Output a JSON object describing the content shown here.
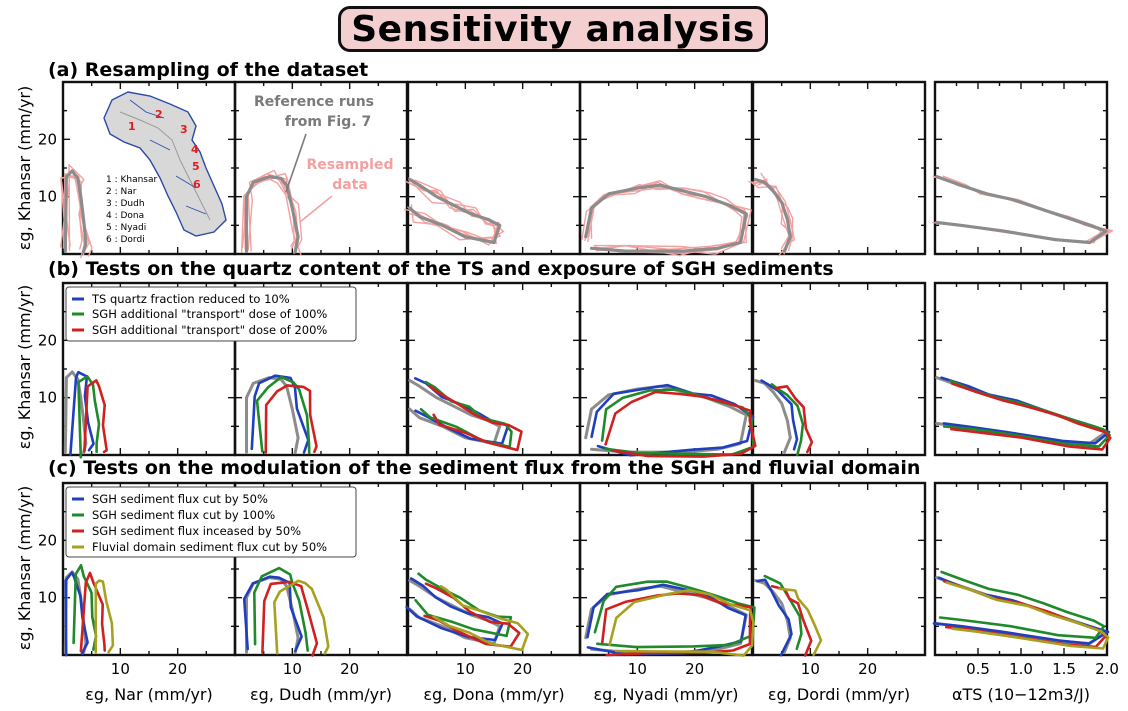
{
  "title": "Sensitivity analysis",
  "rows": [
    {
      "label": "(a) Resampling of the dataset"
    },
    {
      "label": "(b) Tests on the quartz content of the TS and exposure of SGH sediments"
    },
    {
      "label": "(c) Tests on the modulation of the sediment flux from the SGH and fluvial domain"
    }
  ],
  "ylabel": "εg, Khansar (mm/yr)",
  "yticks": [
    "20",
    "10"
  ],
  "xlabels": [
    "εg, Nar (mm/yr)",
    "εg, Dudh (mm/yr)",
    "εg, Dona (mm/yr)",
    "εg, Nyadi (mm/yr)",
    "εg, Dordi (mm/yr)",
    "αTS (10−12m3/J)"
  ],
  "xticks_eps": [
    "10",
    "20"
  ],
  "xticks_alpha": [
    "0.5",
    "1.0",
    "1.5",
    "2.0"
  ],
  "annotations": {
    "reference": [
      "Reference runs",
      "from Fig. 7"
    ],
    "resampled": [
      "Resampled",
      "data"
    ]
  },
  "map": {
    "legend": [
      "1 : Khansar",
      "2 : Nar",
      "3 : Dudh",
      "4 : Dona",
      "5 : Nyadi",
      "6 : Dordi"
    ],
    "numbers": [
      "1",
      "2",
      "3",
      "4",
      "5",
      "6"
    ]
  },
  "legend_b": [
    {
      "label": "TS quartz fraction reduced to 10%",
      "color": "#1f3fbf"
    },
    {
      "label": "SGH additional \"transport\" dose of 100%",
      "color": "#1f8a2a"
    },
    {
      "label": "SGH additional \"transport\" dose of 200%",
      "color": "#d02020"
    }
  ],
  "legend_c": [
    {
      "label": "SGH sediment flux cut by 50%",
      "color": "#1f3fbf"
    },
    {
      "label": "SGH sediment flux cut by 100%",
      "color": "#1f8a2a"
    },
    {
      "label": "SGH sediment flux inceased by 50%",
      "color": "#d02020"
    },
    {
      "label": "Fluvial domain sediment flux cut by 50%",
      "color": "#a8a020"
    }
  ],
  "colors": {
    "reference": "#8c8c8c",
    "resampled": "#f4a0a0",
    "title_bg": "#f3d0cf"
  },
  "chart_data": {
    "type": "contour-grid",
    "y_range": [
      0,
      30
    ],
    "x_range_eps": [
      0,
      30
    ],
    "x_range_alpha": [
      0,
      2.0
    ],
    "panel_columns": [
      "Nar",
      "Dudh",
      "Dona",
      "Nyadi",
      "Dordi",
      "alpha_TS"
    ],
    "series": [
      {
        "name": "Reference runs from Fig. 7",
        "row": "a"
      },
      {
        "name": "Resampled data",
        "row": "a"
      },
      {
        "name": "TS quartz fraction reduced to 10%",
        "row": "b"
      },
      {
        "name": "SGH additional \"transport\" dose of 100%",
        "row": "b"
      },
      {
        "name": "SGH additional \"transport\" dose of 200%",
        "row": "b"
      },
      {
        "name": "SGH sediment flux cut by 50%",
        "row": "c"
      },
      {
        "name": "SGH sediment flux cut by 100%",
        "row": "c"
      },
      {
        "name": "SGH sediment flux inceased by 50%",
        "row": "c"
      },
      {
        "name": "Fluvial domain sediment flux cut by 50%",
        "row": "c"
      }
    ]
  }
}
